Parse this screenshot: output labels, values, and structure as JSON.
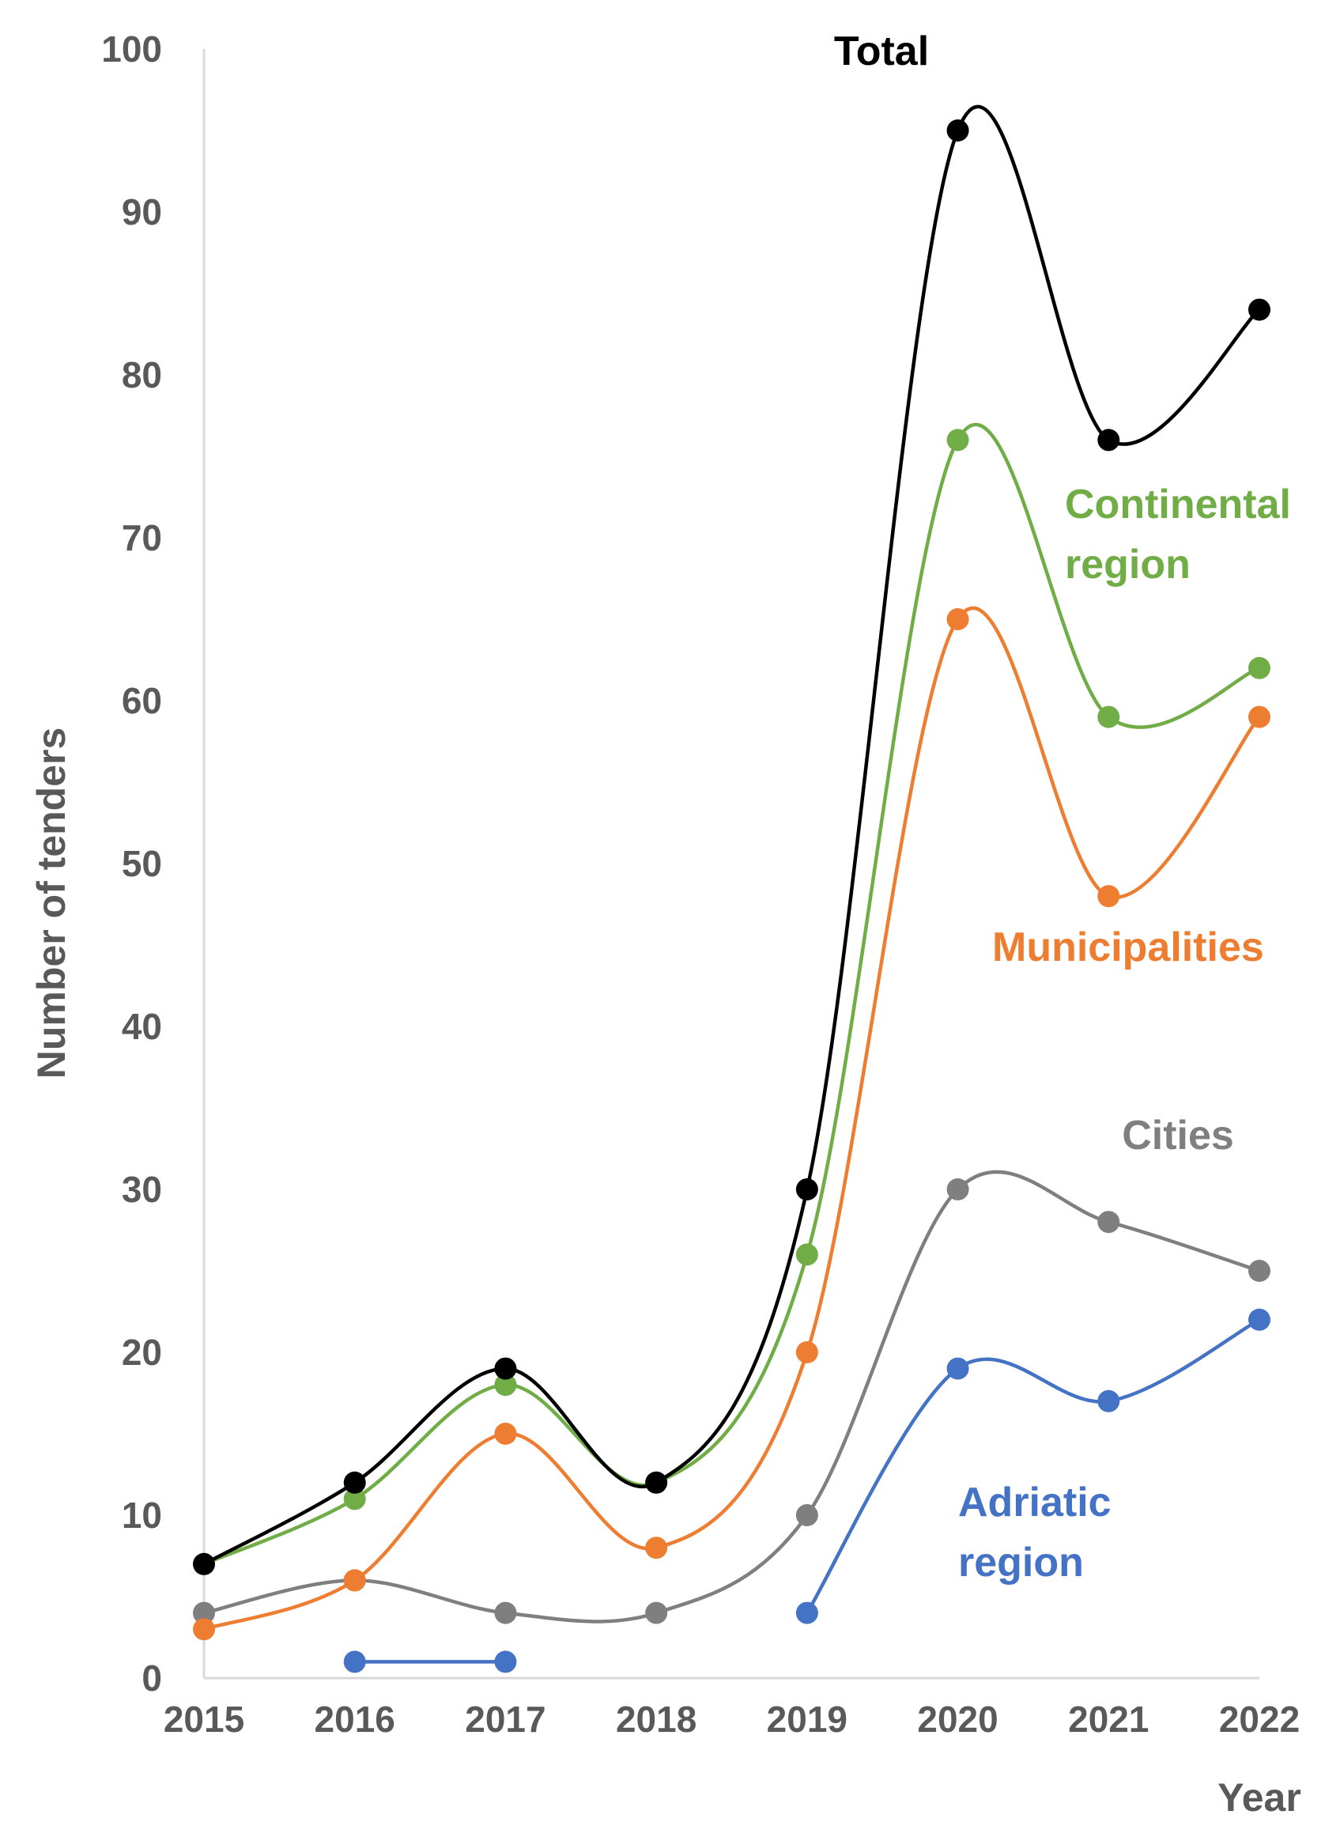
{
  "chart_data": {
    "type": "line",
    "title": "",
    "xlabel": "Year",
    "ylabel": "Number of tenders",
    "ylim": [
      0,
      100
    ],
    "yticks": [
      0,
      10,
      20,
      30,
      40,
      50,
      60,
      70,
      80,
      90,
      100
    ],
    "categories": [
      "2015",
      "2016",
      "2017",
      "2018",
      "2019",
      "2020",
      "2021",
      "2022"
    ],
    "grid": false,
    "legend": "inline labels",
    "series": [
      {
        "name": "Total",
        "label_lines": [
          "Total"
        ],
        "color": "#000000",
        "values": [
          7,
          12,
          19,
          12,
          30,
          95,
          76,
          84
        ]
      },
      {
        "name": "Continental region",
        "label_lines": [
          "Continental",
          "region"
        ],
        "color": "#70AD47",
        "values": [
          7,
          11,
          18,
          12,
          26,
          76,
          59,
          62
        ]
      },
      {
        "name": "Municipalities",
        "label_lines": [
          "Municipalities"
        ],
        "color": "#ED7D31",
        "values": [
          3,
          6,
          15,
          8,
          20,
          65,
          48,
          59
        ]
      },
      {
        "name": "Cities",
        "label_lines": [
          "Cities"
        ],
        "color": "#7F7F7F",
        "values": [
          4,
          6,
          4,
          4,
          10,
          30,
          28,
          25
        ]
      },
      {
        "name": "Adriatic region",
        "label_lines": [
          "Adriatic",
          "region"
        ],
        "color": "#4472C4",
        "values": [
          null,
          1,
          1,
          null,
          4,
          19,
          17,
          22
        ]
      }
    ]
  }
}
